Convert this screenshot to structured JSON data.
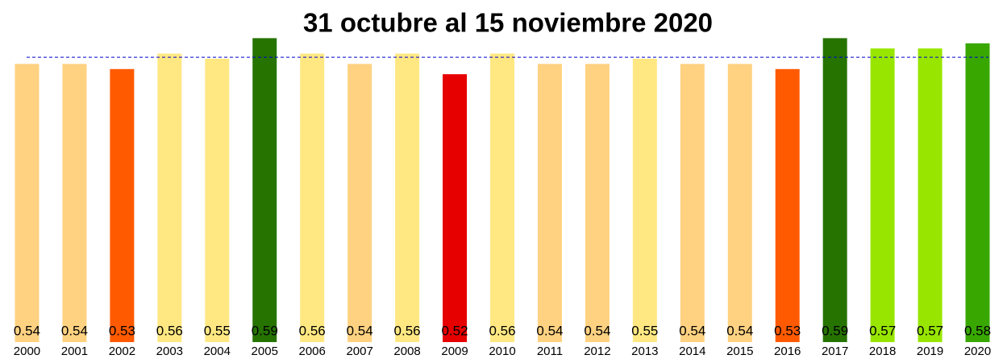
{
  "chart_data": {
    "type": "bar",
    "title": "31 octubre al 15 noviembre 2020",
    "categories": [
      "2000",
      "2001",
      "2002",
      "2003",
      "2004",
      "2005",
      "2006",
      "2007",
      "2008",
      "2009",
      "2010",
      "2011",
      "2012",
      "2013",
      "2014",
      "2015",
      "2016",
      "2017",
      "2018",
      "2019",
      "2020"
    ],
    "values": [
      0.54,
      0.54,
      0.53,
      0.56,
      0.55,
      0.59,
      0.56,
      0.54,
      0.56,
      0.52,
      0.56,
      0.54,
      0.54,
      0.55,
      0.54,
      0.54,
      0.53,
      0.59,
      0.57,
      0.57,
      0.58
    ],
    "colors": [
      "#FFD281",
      "#FFD281",
      "#FF5A00",
      "#FFE882",
      "#FFE882",
      "#267300",
      "#FFE882",
      "#FFD281",
      "#FFE882",
      "#E60000",
      "#FFE882",
      "#FFD281",
      "#FFD281",
      "#FFE882",
      "#FFD281",
      "#FFD281",
      "#FF5A00",
      "#267300",
      "#98E600",
      "#98E600",
      "#38A800"
    ],
    "ylim": [
      0,
      0.6
    ],
    "reference_line": {
      "value": 0.553,
      "color": "#0000cc"
    }
  }
}
